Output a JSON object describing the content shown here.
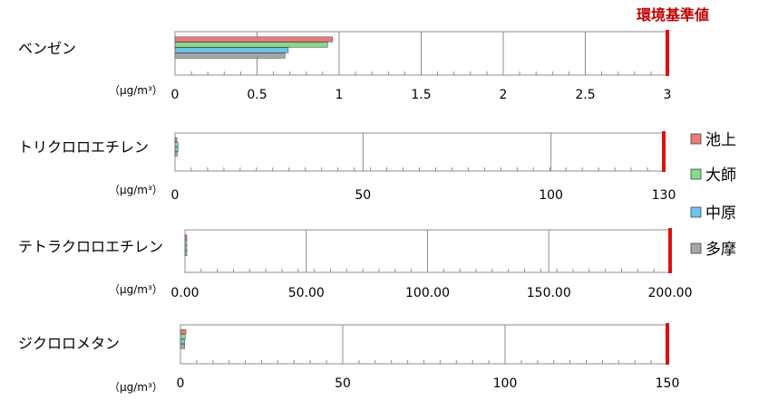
{
  "chart_data": {
    "type": "bar",
    "orientation": "horizontal",
    "subtitle": "環境基準値",
    "unit": "（μg/m³）",
    "legend": {
      "placement": "right",
      "items": [
        {
          "name": "池上",
          "color": "#e87a7a"
        },
        {
          "name": "大師",
          "color": "#88d88a"
        },
        {
          "name": "中原",
          "color": "#6ec4ec"
        },
        {
          "name": "多摩",
          "color": "#a6a6a6"
        }
      ]
    },
    "grid": true,
    "standard_line_color": "#e01010",
    "panels": [
      {
        "category": "ベンゼン",
        "xlim": [
          0,
          3
        ],
        "ticks": [
          "0",
          "0.5",
          "1",
          "1.5",
          "2",
          "2.5",
          "3"
        ],
        "tick_values": [
          0,
          0.5,
          1,
          1.5,
          2,
          2.5,
          3
        ],
        "standard": 3,
        "values": [
          0.96,
          0.93,
          0.69,
          0.67
        ]
      },
      {
        "category": "トリクロロエチレン",
        "xlim": [
          0,
          130
        ],
        "ticks": [
          "0",
          "50",
          "100",
          "130"
        ],
        "tick_values": [
          0,
          50,
          100,
          130
        ],
        "standard": 130,
        "values": [
          0.5,
          0.8,
          0.8,
          0.6
        ]
      },
      {
        "category": "テトラクロロエチレン",
        "xlim": [
          0,
          200
        ],
        "ticks": [
          "0.00",
          "50.00",
          "100.00",
          "150.00",
          "200.00"
        ],
        "tick_values": [
          0,
          50,
          100,
          150,
          200
        ],
        "standard": 200,
        "values": [
          0.4,
          0.4,
          0.4,
          0.4
        ]
      },
      {
        "category": "ジクロロメタン",
        "xlim": [
          0,
          150
        ],
        "ticks": [
          "0",
          "50",
          "100",
          "150"
        ],
        "tick_values": [
          0,
          50,
          100,
          150
        ],
        "standard": 150,
        "values": [
          1.7,
          1.5,
          1.3,
          1.3
        ]
      }
    ]
  }
}
